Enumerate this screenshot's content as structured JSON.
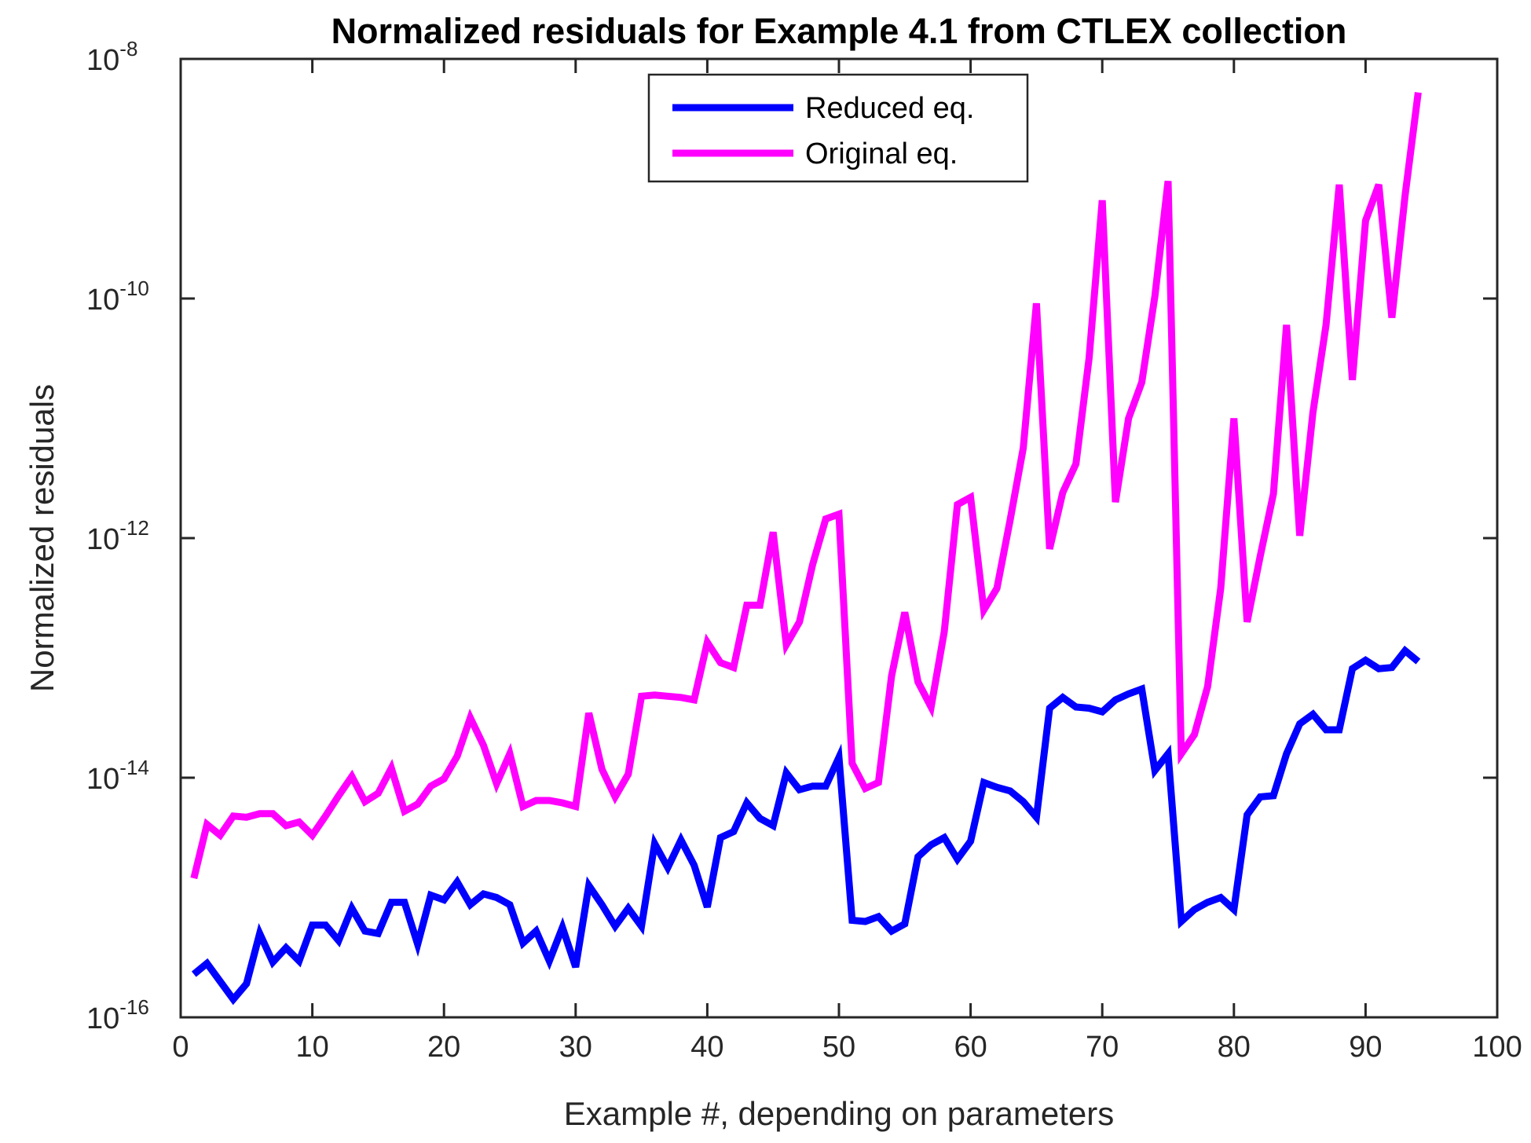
{
  "chart_data": {
    "type": "line",
    "title": "Normalized residuals for Example 4.1 from CTLEX collection",
    "xlabel": "Example #, depending on parameters",
    "ylabel": "Normalized residuals",
    "xlim": [
      0,
      100
    ],
    "ylim_log10": [
      -16,
      -8
    ],
    "yscale": "log",
    "x_ticks": [
      "0",
      "10",
      "20",
      "30",
      "40",
      "50",
      "60",
      "70",
      "80",
      "90",
      "100"
    ],
    "y_ticks": [
      {
        "base": "10",
        "exp": "-16"
      },
      {
        "base": "10",
        "exp": "-14"
      },
      {
        "base": "10",
        "exp": "-12"
      },
      {
        "base": "10",
        "exp": "-10"
      },
      {
        "base": "10",
        "exp": "-8"
      }
    ],
    "legend_position": "top-center",
    "series": [
      {
        "name": "Reduced eq.",
        "color": "#0000ff",
        "x_start": 1,
        "log10_values": [
          -15.64,
          -15.55,
          -15.7,
          -15.85,
          -15.72,
          -15.3,
          -15.54,
          -15.42,
          -15.53,
          -15.23,
          -15.23,
          -15.36,
          -15.09,
          -15.28,
          -15.3,
          -15.04,
          -15.04,
          -15.39,
          -14.98,
          -15.02,
          -14.87,
          -15.06,
          -14.97,
          -15.0,
          -15.06,
          -15.38,
          -15.28,
          -15.53,
          -15.25,
          -15.58,
          -14.9,
          -15.06,
          -15.24,
          -15.09,
          -15.24,
          -14.55,
          -14.75,
          -14.52,
          -14.73,
          -15.08,
          -14.5,
          -14.45,
          -14.21,
          -14.34,
          -14.4,
          -13.96,
          -14.1,
          -14.07,
          -14.07,
          -13.83,
          -15.19,
          -15.2,
          -15.16,
          -15.28,
          -15.22,
          -14.66,
          -14.56,
          -14.5,
          -14.68,
          -14.53,
          -14.04,
          -14.08,
          -14.11,
          -14.2,
          -14.33,
          -13.42,
          -13.33,
          -13.41,
          -13.42,
          -13.45,
          -13.35,
          -13.3,
          -13.26,
          -13.94,
          -13.8,
          -15.2,
          -15.1,
          -15.04,
          -15.0,
          -15.1,
          -14.31,
          -14.16,
          -14.15,
          -13.8,
          -13.55,
          -13.47,
          -13.6,
          -13.6,
          -13.09,
          -13.02,
          -13.09,
          -13.08,
          -12.94,
          -13.03
        ]
      },
      {
        "name": "Original eq.",
        "color": "#ff00ff",
        "x_start": 1,
        "log10_values": [
          -14.84,
          -14.39,
          -14.48,
          -14.32,
          -14.33,
          -14.3,
          -14.3,
          -14.4,
          -14.37,
          -14.48,
          -14.32,
          -14.15,
          -13.99,
          -14.2,
          -14.13,
          -13.92,
          -14.28,
          -14.22,
          -14.07,
          -14.01,
          -13.82,
          -13.5,
          -13.73,
          -14.05,
          -13.8,
          -14.24,
          -14.19,
          -14.19,
          -14.21,
          -14.24,
          -13.46,
          -13.93,
          -14.16,
          -13.97,
          -13.32,
          -13.31,
          -13.32,
          -13.33,
          -13.35,
          -12.87,
          -13.04,
          -13.08,
          -12.56,
          -12.56,
          -11.95,
          -12.89,
          -12.7,
          -12.22,
          -11.84,
          -11.8,
          -13.88,
          -14.09,
          -14.04,
          -13.15,
          -12.62,
          -13.2,
          -13.41,
          -12.78,
          -11.72,
          -11.66,
          -12.6,
          -12.42,
          -11.85,
          -11.25,
          -10.04,
          -12.09,
          -11.62,
          -11.38,
          -10.5,
          -9.18,
          -11.7,
          -11.0,
          -10.7,
          -9.98,
          -9.02,
          -13.8,
          -13.64,
          -13.24,
          -12.42,
          -11.0,
          -12.7,
          -12.15,
          -11.63,
          -10.22,
          -11.98,
          -10.95,
          -10.22,
          -9.05,
          -10.68,
          -9.35,
          -9.05,
          -10.16,
          -9.14,
          -8.28
        ]
      }
    ]
  }
}
